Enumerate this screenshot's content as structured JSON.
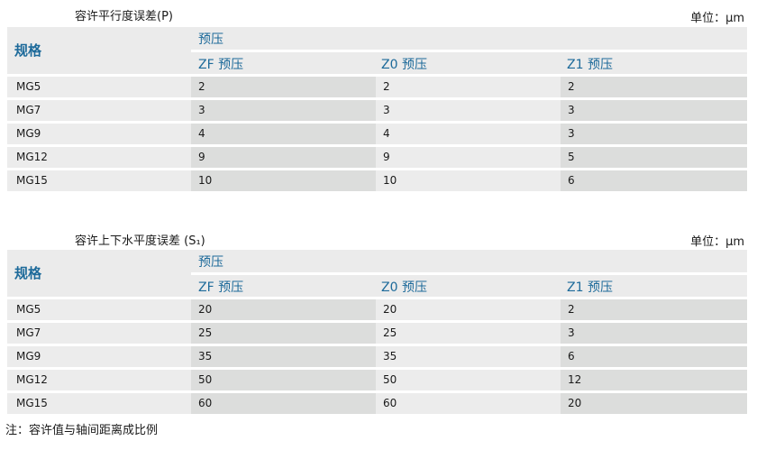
{
  "tables": [
    {
      "title": "容许平行度误差(P)",
      "unit": "单位：μm",
      "spec_header": "规格",
      "preload_header": "预压",
      "columns": [
        "ZF 预压",
        "Z0 预压",
        "Z1 预压"
      ],
      "rows": [
        [
          "MG5",
          "2",
          "2",
          "2"
        ],
        [
          "MG7",
          "3",
          "3",
          "3"
        ],
        [
          "MG9",
          "4",
          "4",
          "3"
        ],
        [
          "MG12",
          "9",
          "9",
          "5"
        ],
        [
          "MG15",
          "10",
          "10",
          "6"
        ]
      ]
    },
    {
      "title": "容许上下水平度误差 (S₁)",
      "unit": "单位：μm",
      "spec_header": "规格",
      "preload_header": "预压",
      "columns": [
        "ZF 预压",
        "Z0 预压",
        "Z1 预压"
      ],
      "rows": [
        [
          "MG5",
          "20",
          "20",
          "2"
        ],
        [
          "MG7",
          "25",
          "25",
          "3"
        ],
        [
          "MG9",
          "35",
          "35",
          "6"
        ],
        [
          "MG12",
          "50",
          "50",
          "12"
        ],
        [
          "MG15",
          "60",
          "60",
          "20"
        ]
      ]
    }
  ],
  "note": "注：容许值与轴间距离成比例"
}
